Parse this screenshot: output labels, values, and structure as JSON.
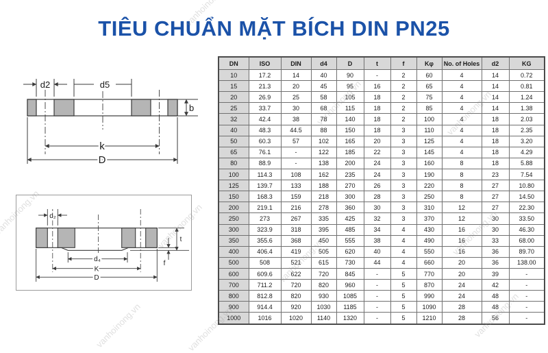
{
  "title": "TIÊU CHUẨN MẶT BÍCH DIN PN25",
  "watermark": {
    "text": "vanhoinong.vn"
  },
  "diagram1": {
    "labels": {
      "d2": "d2",
      "d5": "d5",
      "b": "b",
      "k": "k",
      "D": "D"
    }
  },
  "diagram2": {
    "labels": {
      "d2": "d₂",
      "d4": "d₄",
      "K": "K",
      "D": "D",
      "t": "t",
      "f": "f"
    }
  },
  "table": {
    "headers": [
      "DN",
      "ISO",
      "DIN",
      "d4",
      "D",
      "t",
      "f",
      "Kφ",
      "No. of Holes",
      "d2",
      "KG"
    ],
    "rows": [
      [
        "10",
        "17.2",
        "14",
        "40",
        "90",
        "-",
        "2",
        "60",
        "4",
        "14",
        "0.72"
      ],
      [
        "15",
        "21.3",
        "20",
        "45",
        "95",
        "16",
        "2",
        "65",
        "4",
        "14",
        "0.81"
      ],
      [
        "20",
        "26.9",
        "25",
        "58",
        "105",
        "18",
        "2",
        "75",
        "4",
        "14",
        "1.24"
      ],
      [
        "25",
        "33.7",
        "30",
        "68",
        "115",
        "18",
        "2",
        "85",
        "4",
        "14",
        "1.38"
      ],
      [
        "32",
        "42.4",
        "38",
        "78",
        "140",
        "18",
        "2",
        "100",
        "4",
        "18",
        "2.03"
      ],
      [
        "40",
        "48.3",
        "44.5",
        "88",
        "150",
        "18",
        "3",
        "110",
        "4",
        "18",
        "2.35"
      ],
      [
        "50",
        "60.3",
        "57",
        "102",
        "165",
        "20",
        "3",
        "125",
        "4",
        "18",
        "3.20"
      ],
      [
        "65",
        "76.1",
        "-",
        "122",
        "185",
        "22",
        "3",
        "145",
        "4",
        "18",
        "4.29"
      ],
      [
        "80",
        "88.9",
        "-",
        "138",
        "200",
        "24",
        "3",
        "160",
        "8",
        "18",
        "5.88"
      ],
      [
        "100",
        "114.3",
        "108",
        "162",
        "235",
        "24",
        "3",
        "190",
        "8",
        "23",
        "7.54"
      ],
      [
        "125",
        "139.7",
        "133",
        "188",
        "270",
        "26",
        "3",
        "220",
        "8",
        "27",
        "10.80"
      ],
      [
        "150",
        "168.3",
        "159",
        "218",
        "300",
        "28",
        "3",
        "250",
        "8",
        "27",
        "14.50"
      ],
      [
        "200",
        "219.1",
        "216",
        "278",
        "360",
        "30",
        "3",
        "310",
        "12",
        "27",
        "22.30"
      ],
      [
        "250",
        "273",
        "267",
        "335",
        "425",
        "32",
        "3",
        "370",
        "12",
        "30",
        "33.50"
      ],
      [
        "300",
        "323.9",
        "318",
        "395",
        "485",
        "34",
        "4",
        "430",
        "16",
        "30",
        "46.30"
      ],
      [
        "350",
        "355.6",
        "368",
        "450",
        "555",
        "38",
        "4",
        "490",
        "16",
        "33",
        "68.00"
      ],
      [
        "400",
        "406.4",
        "419",
        "505",
        "620",
        "40",
        "4",
        "550",
        "16",
        "36",
        "89.70"
      ],
      [
        "500",
        "508",
        "521",
        "615",
        "730",
        "44",
        "4",
        "660",
        "20",
        "36",
        "138.00"
      ],
      [
        "600",
        "609.6",
        "622",
        "720",
        "845",
        "-",
        "5",
        "770",
        "20",
        "39",
        "-"
      ],
      [
        "700",
        "711.2",
        "720",
        "820",
        "960",
        "-",
        "5",
        "870",
        "24",
        "42",
        "-"
      ],
      [
        "800",
        "812.8",
        "820",
        "930",
        "1085",
        "-",
        "5",
        "990",
        "24",
        "48",
        "-"
      ],
      [
        "900",
        "914.4",
        "920",
        "1030",
        "1185",
        "-",
        "5",
        "1090",
        "28",
        "48",
        "-"
      ],
      [
        "1000",
        "1016",
        "1020",
        "1140",
        "1320",
        "-",
        "5",
        "1210",
        "28",
        "56",
        "-"
      ]
    ]
  }
}
